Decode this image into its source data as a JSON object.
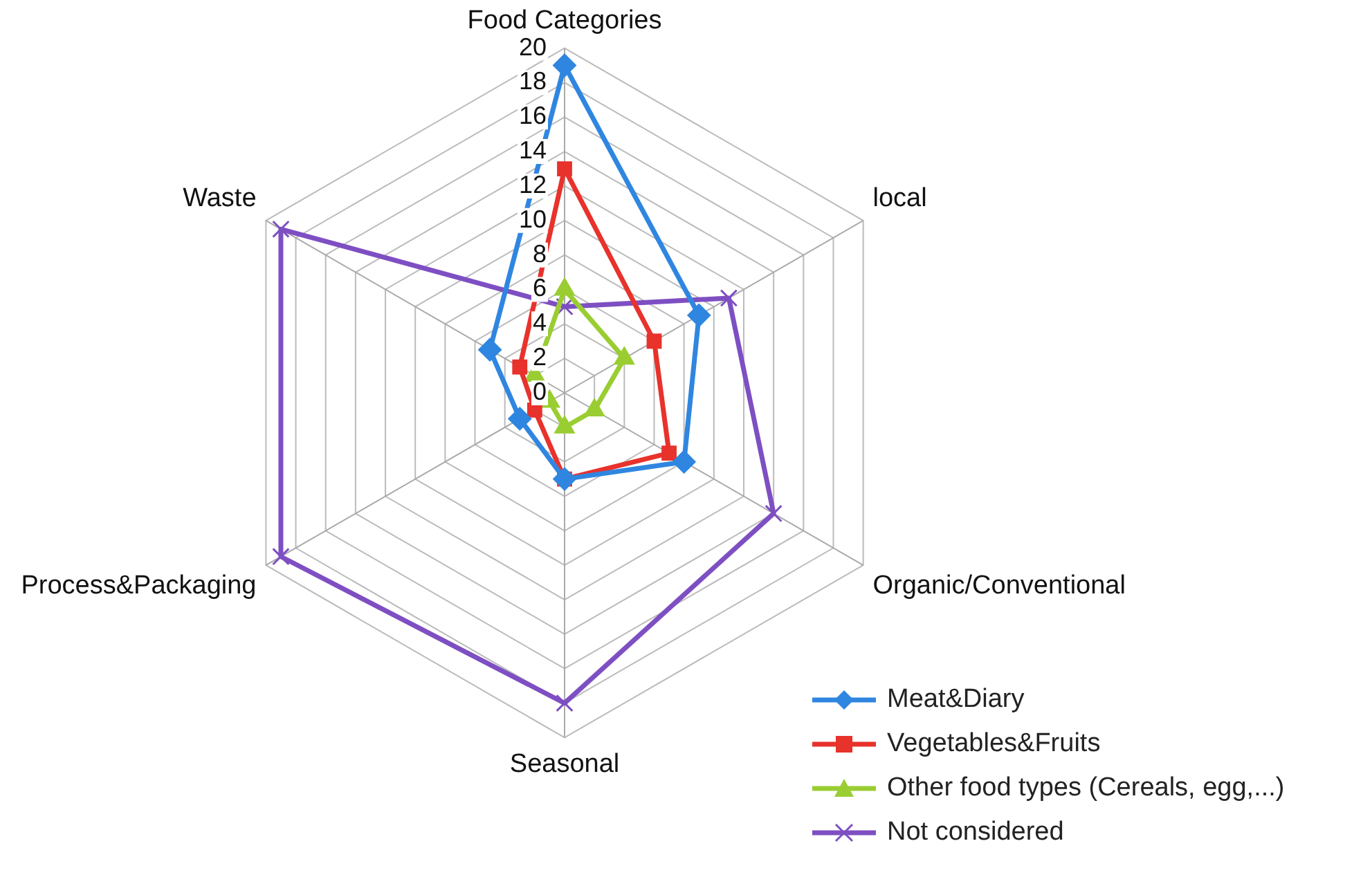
{
  "chart_data": {
    "type": "radar",
    "categories": [
      "Food Categories",
      "local",
      "Organic/Conventional",
      "Seasonal",
      "Process&Packaging",
      "Waste"
    ],
    "series": [
      {
        "name": "Meat&Diary",
        "color": "#2f86e0",
        "marker": "diamond",
        "values": [
          19,
          9,
          8,
          5,
          3,
          5
        ]
      },
      {
        "name": "Vegetables&Fruits",
        "color": "#e8322c",
        "marker": "square",
        "values": [
          13,
          6,
          7,
          5,
          2,
          3
        ]
      },
      {
        "name": "Other food types (Cereals, egg,...)",
        "color": "#9acd32",
        "marker": "triangle",
        "values": [
          6,
          4,
          2,
          2,
          1,
          2
        ]
      },
      {
        "name": "Not considered",
        "color": "#7e4fc2",
        "marker": "cross",
        "values": [
          5,
          11,
          14,
          18,
          19,
          19
        ]
      }
    ],
    "ylim": [
      0,
      20
    ],
    "yticks": [
      0,
      2,
      4,
      6,
      8,
      10,
      12,
      14,
      16,
      18,
      20
    ],
    "grid": true,
    "legend": "bottom right"
  }
}
